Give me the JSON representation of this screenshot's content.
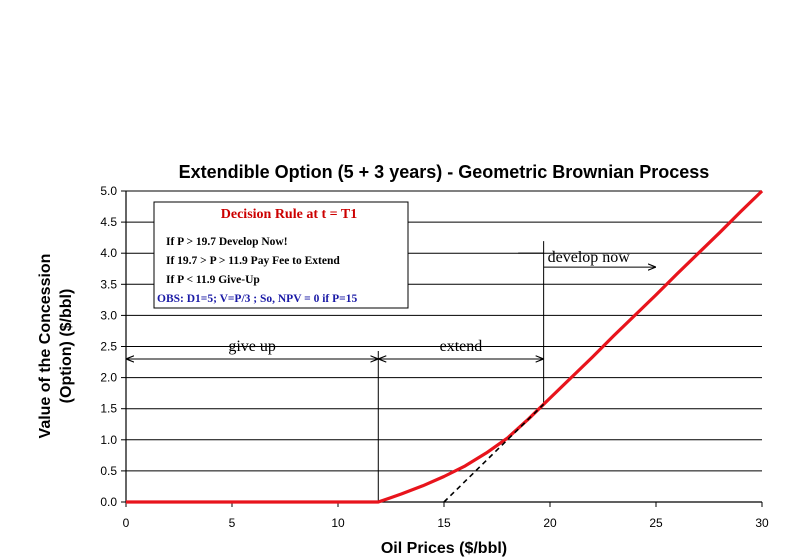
{
  "chart_data": {
    "type": "line",
    "title": "Extendible Option (5 + 3 years) - Geometric Brownian Process",
    "xlabel": "Oil Prices ($/bbl)",
    "ylabel_line1": "Value of the Concession",
    "ylabel_line2": "(Option) ($/bbl)",
    "xlim": [
      0,
      30
    ],
    "ylim": [
      0,
      5
    ],
    "x_ticks": [
      "0",
      "5",
      "10",
      "15",
      "20",
      "25",
      "30"
    ],
    "y_ticks": [
      "0.0",
      "0.5",
      "1.0",
      "1.5",
      "2.0",
      "2.5",
      "3.0",
      "3.5",
      "4.0",
      "4.5",
      "5.0"
    ],
    "grid": "horizontal",
    "series": [
      {
        "style": "solid",
        "color": "#e8141c",
        "x": [
          0,
          11.9,
          12.5,
          13,
          14,
          15,
          16,
          17,
          18,
          19,
          19.7,
          20,
          21,
          22,
          23,
          24,
          25,
          26,
          27,
          28,
          29,
          30
        ],
        "y": [
          0,
          0,
          0.07,
          0.13,
          0.26,
          0.41,
          0.58,
          0.79,
          1.03,
          1.34,
          1.57,
          1.67,
          2.0,
          2.33,
          2.67,
          3.0,
          3.33,
          3.67,
          4.0,
          4.33,
          4.67,
          5.0
        ]
      },
      {
        "style": "dashed",
        "color": "#000000",
        "x": [
          15,
          19.7
        ],
        "y": [
          0,
          1.57
        ]
      }
    ],
    "thresholds": [
      11.9,
      19.7
    ],
    "regions": [
      {
        "label": "give up",
        "from": 0,
        "to": 11.9
      },
      {
        "label": "extend",
        "from": 11.9,
        "to": 19.7
      },
      {
        "label": "develop now",
        "from": 19.7,
        "to": 25
      }
    ],
    "legend_box": {
      "title": "Decision Rule at t = T1",
      "lines": [
        "If    P > 19.7  Develop Now!",
        "If 19.7 > P > 11.9  Pay Fee to Extend",
        "If      P < 11.9 Give-Up"
      ],
      "note": "OBS: D1=5; V=P/3 ; So, NPV = 0 if P=15"
    }
  },
  "colors": {
    "curve": "#e8141c",
    "box_title": "#cc0000",
    "box_note": "#1a1aa6"
  }
}
